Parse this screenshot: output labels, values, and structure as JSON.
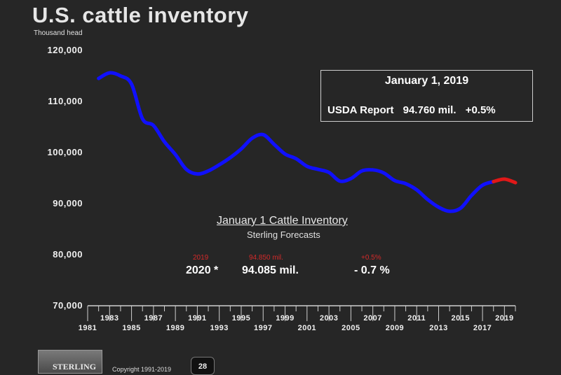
{
  "header": {
    "title": "U.S. cattle inventory",
    "unit": "Thousand head"
  },
  "infobox": {
    "date": "January 1, 2019",
    "report_label": "USDA Report",
    "report_value": "94.760 mil.",
    "report_change": "+0.5%"
  },
  "forecast": {
    "title": "January 1 Cattle Inventory",
    "subtitle": "Sterling Forecasts",
    "prior_year": "2019",
    "prior_value": "94.850 mil.",
    "prior_change": "+0.5%",
    "year": "2020 *",
    "value": "94.085 mil.",
    "change": "- 0.7 %"
  },
  "footer": {
    "logo_text": "STERLING",
    "copyright": "Copyright 1991-2019",
    "badge": "28"
  },
  "colors": {
    "historical": "#1010ff",
    "forecast": "#e01818",
    "background": "#262626"
  },
  "chart_data": {
    "type": "line",
    "ylabel": "Thousand head",
    "ylim": [
      70000,
      120000
    ],
    "yticks": [
      70000,
      80000,
      90000,
      100000,
      110000,
      120000
    ],
    "ytick_labels": [
      "70,000",
      "80,000",
      "90,000",
      "100,000",
      "110,000",
      "120,000"
    ],
    "xlim": [
      1981,
      2020
    ],
    "xticks_lower": [
      "1981",
      "1985",
      "1989",
      "1993",
      "1997",
      "2001",
      "2005",
      "2009",
      "2013",
      "2017"
    ],
    "xticks_upper": [
      "1983",
      "1987",
      "1991",
      "1995",
      "1999",
      "2003",
      "2007",
      "2011",
      "2015",
      "2019"
    ],
    "grid": false,
    "series": [
      {
        "x": [
          1982,
          1983,
          1984,
          1985,
          1986,
          1987,
          1988,
          1989,
          1990,
          1991,
          1992,
          1993,
          1994,
          1995,
          1996,
          1997,
          1998,
          1999,
          2000,
          2001,
          2002,
          2003,
          2004,
          2005,
          2006,
          2007,
          2008,
          2009,
          2010,
          2011,
          2012,
          2013,
          2014,
          2015,
          2016,
          2017,
          2018
        ],
        "values": [
          114500,
          115600,
          115000,
          113400,
          106600,
          105300,
          102100,
          99600,
          96700,
          95800,
          96400,
          97600,
          99000,
          100700,
          102800,
          103500,
          101600,
          99700,
          98800,
          97300,
          96700,
          96100,
          94400,
          94900,
          96400,
          96600,
          96000,
          94500,
          93900,
          92700,
          90800,
          89300,
          88500,
          89100,
          91600,
          93600,
          94300
        ]
      },
      {
        "x": [
          2018,
          2019,
          2020
        ],
        "values": [
          94300,
          94800,
          94100
        ]
      }
    ]
  }
}
